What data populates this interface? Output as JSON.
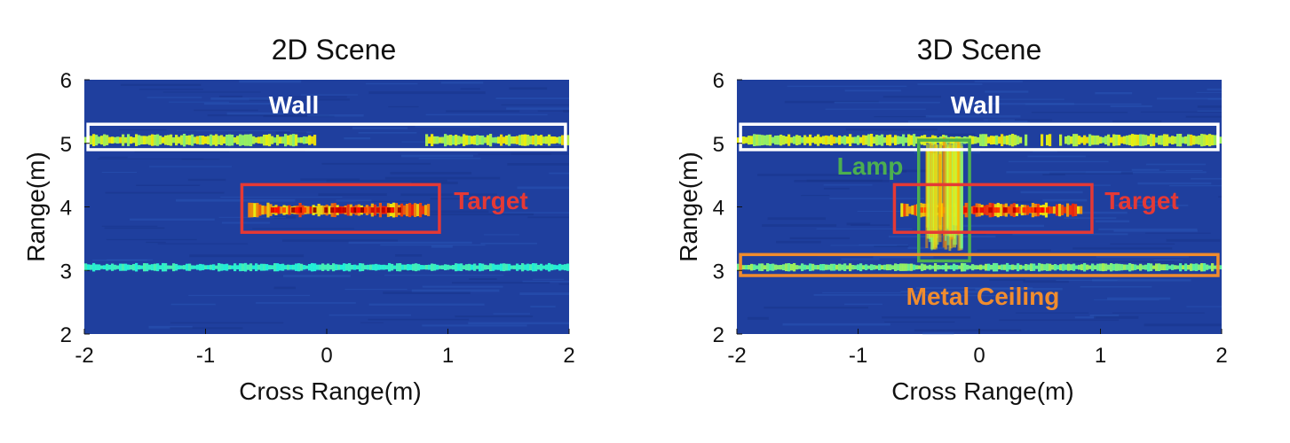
{
  "chart_data": [
    {
      "type": "heatmap",
      "title": "2D Scene",
      "xlabel": "Cross Range(m)",
      "ylabel": "Range(m)",
      "xlim": [
        -2,
        2
      ],
      "ylim": [
        2,
        6
      ],
      "xticks": [
        "-2",
        "-1",
        "0",
        "1",
        "2"
      ],
      "yticks": [
        "2",
        "3",
        "4",
        "5",
        "6"
      ],
      "grid": false,
      "colormap": "jet",
      "background_color": "#1f3f9e",
      "reflections": [
        {
          "label": "Wall",
          "x_range": [
            -2,
            2
          ],
          "range_m": 5.05,
          "intensity": 0.6
        },
        {
          "label": "Target",
          "x_range": [
            -0.65,
            0.85
          ],
          "range_m": 3.95,
          "intensity": 1.0
        },
        {
          "x_range": [
            -2,
            2
          ],
          "range_m": 3.05,
          "intensity": 0.2
        }
      ],
      "annotations": [
        {
          "label": "Wall",
          "color": "#ffffff",
          "box_x": [
            -1.97,
            1.97
          ],
          "box_y": [
            4.9,
            5.3
          ]
        },
        {
          "label": "Target",
          "color": "#e53935",
          "box_x": [
            -0.7,
            0.93
          ],
          "box_y": [
            3.6,
            4.35
          ]
        }
      ]
    },
    {
      "type": "heatmap",
      "title": "3D Scene",
      "xlabel": "Cross Range(m)",
      "ylabel": "Range(m)",
      "xlim": [
        -2,
        2
      ],
      "ylim": [
        2,
        6
      ],
      "xticks": [
        "-2",
        "-1",
        "0",
        "1",
        "2"
      ],
      "yticks": [
        "2",
        "3",
        "4",
        "5",
        "6"
      ],
      "grid": false,
      "colormap": "jet",
      "background_color": "#1f3f9e",
      "reflections": [
        {
          "label": "Wall",
          "x_range": [
            -2,
            2
          ],
          "range_m": 5.05,
          "intensity": 0.6
        },
        {
          "label": "Target",
          "x_range": [
            -0.65,
            0.85
          ],
          "range_m": 3.95,
          "intensity": 1.0
        },
        {
          "label": "Metal Ceiling",
          "x_range": [
            -2,
            2
          ],
          "range_m": 3.05,
          "intensity": 0.4
        },
        {
          "label": "Lamp",
          "x_range": [
            -0.45,
            -0.15
          ],
          "range_m": 4.3,
          "intensity": 0.8
        }
      ],
      "annotations": [
        {
          "label": "Wall",
          "color": "#ffffff",
          "box_x": [
            -1.97,
            1.97
          ],
          "box_y": [
            4.9,
            5.3
          ]
        },
        {
          "label": "Lamp",
          "color": "#4caf50",
          "box_x": [
            -0.5,
            -0.08
          ],
          "box_y": [
            3.15,
            5.05
          ]
        },
        {
          "label": "Target",
          "color": "#e53935",
          "box_x": [
            -0.7,
            0.93
          ],
          "box_y": [
            3.6,
            4.35
          ]
        },
        {
          "label": "Metal Ceiling",
          "color": "#f08c2e",
          "box_x": [
            -1.97,
            1.97
          ],
          "box_y": [
            2.92,
            3.25
          ]
        }
      ]
    }
  ]
}
